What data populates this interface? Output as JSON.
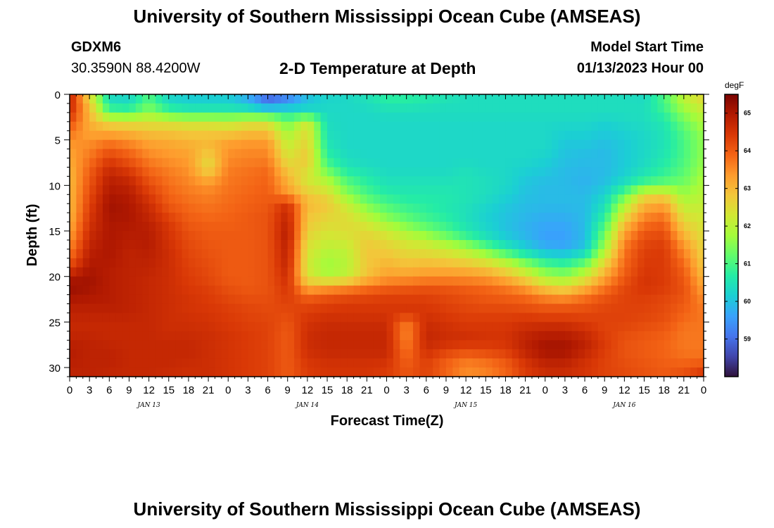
{
  "header": {
    "title": "University of Southern Mississippi Ocean Cube (AMSEAS)",
    "station": "GDXM6",
    "coordinates": "30.3590N  88.4200W",
    "subtitle": "2-D Temperature at Depth",
    "model_start_label": "Model Start Time",
    "model_start_value": "01/13/2023 Hour 00",
    "footer_title": "University of Southern Mississippi Ocean Cube (AMSEAS)"
  },
  "chart_data": {
    "type": "heatmap",
    "title": "2-D Temperature at Depth",
    "xlabel": "Forecast Time(Z)",
    "ylabel": "Depth (ft)",
    "x_hours_range": [
      0,
      96
    ],
    "x_tick_labels": [
      "0",
      "3",
      "6",
      "9",
      "12",
      "15",
      "18",
      "21",
      "0",
      "3",
      "6",
      "9",
      "12",
      "15",
      "18",
      "21",
      "0",
      "3",
      "6",
      "9",
      "12",
      "15",
      "18",
      "21",
      "0",
      "3",
      "6",
      "9",
      "12",
      "15",
      "18",
      "21",
      "0"
    ],
    "day_labels": [
      {
        "label": "JAN 13",
        "hour": 12
      },
      {
        "label": "JAN 14",
        "hour": 36
      },
      {
        "label": "JAN 15",
        "hour": 60
      },
      {
        "label": "JAN 16",
        "hour": 84
      }
    ],
    "y_range": [
      0,
      31
    ],
    "y_ticks": [
      0,
      5,
      10,
      15,
      20,
      25,
      30
    ],
    "depth_levels": [
      0,
      1,
      2,
      3,
      4,
      5,
      6,
      7,
      8,
      9,
      10,
      11,
      12,
      13,
      14,
      15,
      16,
      17,
      18,
      19,
      20,
      21,
      22,
      23,
      24,
      25,
      26,
      27,
      28,
      29,
      30,
      31
    ],
    "hours": [
      0,
      3,
      6,
      9,
      12,
      15,
      18,
      21,
      24,
      27,
      30,
      33,
      36,
      39,
      42,
      45,
      48,
      51,
      54,
      57,
      60,
      63,
      66,
      69,
      72,
      75,
      78,
      81,
      84,
      87,
      90,
      93,
      96
    ],
    "temperature_degF": [
      [
        64.8,
        62.4,
        60.3,
        60.2,
        61.0,
        60.2,
        60.1,
        60.1,
        60.1,
        59.7,
        58.8,
        59.2,
        59.9,
        60.2,
        60.3,
        60.5,
        60.8,
        60.8,
        60.7,
        60.6,
        60.4,
        60.4,
        60.4,
        60.4,
        60.4,
        60.4,
        60.4,
        60.4,
        60.4,
        60.3,
        61.0,
        62.1,
        62.6
      ],
      [
        64.8,
        62.8,
        60.5,
        60.4,
        61.2,
        60.4,
        60.2,
        60.2,
        60.2,
        59.9,
        59.2,
        59.5,
        60.1,
        60.3,
        60.3,
        60.4,
        60.6,
        60.6,
        60.5,
        60.4,
        60.4,
        60.4,
        60.4,
        60.4,
        60.4,
        60.4,
        60.4,
        60.4,
        60.4,
        60.4,
        61.0,
        61.9,
        62.4
      ],
      [
        64.6,
        63.0,
        61.1,
        61.0,
        61.6,
        61.0,
        60.8,
        60.8,
        60.8,
        60.8,
        60.6,
        60.6,
        60.4,
        60.3,
        60.3,
        60.3,
        60.4,
        60.4,
        60.4,
        60.4,
        60.4,
        60.4,
        60.4,
        60.4,
        60.4,
        60.4,
        60.4,
        60.4,
        60.4,
        60.4,
        60.8,
        61.6,
        62.1
      ],
      [
        64.2,
        63.1,
        62.5,
        62.4,
        62.4,
        62.3,
        62.2,
        62.2,
        62.1,
        62.3,
        62.3,
        61.2,
        62.3,
        60.4,
        60.3,
        60.3,
        60.3,
        60.3,
        60.3,
        60.3,
        60.3,
        60.3,
        60.3,
        60.3,
        60.3,
        60.3,
        60.3,
        60.2,
        60.3,
        60.4,
        60.6,
        61.3,
        61.9
      ],
      [
        63.8,
        63.2,
        63.1,
        63.0,
        62.8,
        62.8,
        62.7,
        62.7,
        62.6,
        62.8,
        62.8,
        61.7,
        62.5,
        60.4,
        60.3,
        60.3,
        60.3,
        60.3,
        60.3,
        60.3,
        60.3,
        60.3,
        60.3,
        60.3,
        60.3,
        60.2,
        60.2,
        60.1,
        60.2,
        60.3,
        60.5,
        61.1,
        61.7
      ],
      [
        63.5,
        63.4,
        63.6,
        63.4,
        63.2,
        63.1,
        63.0,
        63.0,
        63.2,
        63.3,
        63.3,
        62.0,
        62.6,
        60.5,
        60.3,
        60.3,
        60.3,
        60.3,
        60.3,
        60.3,
        60.3,
        60.3,
        60.3,
        60.3,
        60.3,
        60.1,
        60.1,
        60.0,
        60.1,
        60.3,
        60.5,
        61.0,
        61.6
      ],
      [
        63.3,
        63.6,
        64.0,
        63.8,
        63.4,
        63.3,
        63.2,
        62.9,
        63.4,
        63.5,
        63.5,
        62.2,
        62.7,
        60.6,
        60.3,
        60.3,
        60.3,
        60.3,
        60.3,
        60.3,
        60.3,
        60.3,
        60.3,
        60.3,
        60.3,
        60.0,
        60.0,
        59.9,
        60.1,
        60.3,
        60.5,
        61.0,
        61.6
      ],
      [
        63.2,
        63.7,
        64.3,
        64.0,
        63.6,
        63.4,
        63.3,
        62.6,
        63.5,
        63.6,
        63.6,
        62.4,
        62.8,
        60.8,
        60.4,
        60.3,
        60.3,
        60.3,
        60.3,
        60.3,
        60.3,
        60.3,
        60.3,
        60.3,
        60.2,
        60.0,
        59.9,
        59.9,
        60.1,
        60.3,
        60.6,
        61.0,
        61.6
      ],
      [
        63.1,
        63.9,
        64.6,
        64.3,
        63.8,
        63.6,
        63.4,
        62.5,
        63.6,
        63.7,
        63.8,
        62.7,
        62.6,
        61.1,
        60.5,
        60.4,
        60.3,
        60.3,
        60.3,
        60.3,
        60.4,
        60.3,
        60.3,
        60.2,
        60.1,
        59.9,
        59.9,
        59.9,
        60.1,
        60.4,
        60.7,
        61.1,
        61.7
      ],
      [
        63.0,
        64.0,
        64.8,
        64.6,
        64.0,
        63.7,
        63.5,
        63.0,
        63.7,
        63.8,
        63.9,
        63.0,
        62.3,
        61.7,
        60.9,
        60.6,
        60.4,
        60.4,
        60.4,
        60.4,
        60.5,
        60.4,
        60.3,
        60.1,
        60.0,
        59.9,
        59.8,
        59.9,
        60.2,
        60.6,
        60.9,
        61.2,
        61.8
      ],
      [
        63.0,
        64.1,
        64.9,
        64.8,
        64.2,
        63.8,
        63.6,
        63.4,
        63.7,
        63.8,
        63.9,
        63.2,
        62.4,
        62.1,
        61.2,
        60.8,
        60.5,
        60.5,
        60.5,
        60.5,
        60.5,
        60.4,
        60.3,
        60.0,
        59.9,
        59.9,
        59.8,
        60.0,
        60.5,
        61.1,
        61.3,
        61.4,
        61.9
      ],
      [
        63.0,
        64.2,
        65.0,
        64.9,
        64.4,
        63.9,
        63.7,
        63.6,
        63.8,
        63.9,
        64.0,
        63.4,
        62.8,
        62.5,
        61.6,
        61.0,
        60.7,
        60.6,
        60.6,
        60.6,
        60.5,
        60.4,
        60.2,
        60.0,
        59.9,
        59.9,
        59.9,
        60.2,
        61.2,
        62.5,
        62.6,
        61.7,
        62.0
      ],
      [
        63.0,
        64.3,
        65.1,
        65.0,
        64.6,
        64.0,
        63.8,
        63.7,
        63.8,
        63.9,
        64.0,
        64.5,
        63.0,
        62.8,
        62.1,
        61.4,
        61.0,
        60.8,
        60.7,
        60.6,
        60.5,
        60.3,
        60.1,
        59.9,
        59.9,
        59.9,
        59.9,
        60.4,
        61.8,
        63.0,
        63.2,
        62.0,
        62.1
      ],
      [
        63.0,
        64.4,
        65.1,
        65.0,
        64.7,
        64.2,
        63.9,
        63.8,
        63.9,
        64.0,
        64.1,
        64.7,
        62.9,
        62.7,
        62.4,
        61.8,
        61.3,
        61.0,
        60.8,
        60.6,
        60.4,
        60.2,
        60.0,
        59.9,
        59.8,
        59.8,
        59.9,
        60.6,
        62.3,
        63.4,
        63.6,
        62.3,
        62.2
      ],
      [
        63.1,
        64.5,
        65.0,
        65.0,
        64.8,
        64.4,
        64.0,
        63.9,
        63.9,
        64.0,
        64.1,
        64.8,
        62.8,
        62.5,
        62.5,
        62.2,
        61.7,
        61.3,
        61.0,
        60.8,
        60.5,
        60.2,
        60.0,
        59.8,
        59.7,
        59.7,
        59.9,
        60.9,
        62.8,
        63.7,
        63.9,
        62.6,
        62.3
      ],
      [
        63.2,
        64.6,
        65.0,
        64.9,
        64.9,
        64.5,
        64.1,
        64.0,
        64.0,
        64.0,
        64.1,
        64.9,
        62.7,
        62.4,
        62.5,
        62.5,
        62.2,
        61.8,
        61.4,
        61.0,
        60.6,
        60.3,
        60.0,
        59.8,
        59.6,
        59.6,
        59.9,
        61.2,
        63.2,
        64.0,
        64.1,
        62.9,
        62.4
      ],
      [
        63.4,
        64.7,
        65.0,
        64.9,
        64.9,
        64.5,
        64.2,
        64.0,
        64.0,
        64.0,
        64.1,
        64.9,
        62.5,
        62.2,
        62.3,
        62.7,
        62.5,
        62.2,
        62.0,
        61.6,
        61.1,
        60.6,
        60.2,
        59.9,
        59.6,
        59.6,
        59.9,
        61.5,
        63.5,
        64.2,
        64.3,
        63.2,
        62.5
      ],
      [
        63.6,
        64.8,
        65.0,
        64.8,
        64.9,
        64.6,
        64.2,
        64.1,
        64.0,
        64.0,
        64.1,
        64.8,
        62.4,
        62.0,
        62.1,
        62.8,
        62.7,
        62.5,
        62.4,
        62.2,
        61.9,
        61.3,
        60.7,
        60.2,
        59.8,
        59.7,
        60.1,
        61.8,
        63.7,
        64.3,
        64.4,
        63.5,
        62.6
      ],
      [
        63.9,
        64.9,
        65.0,
        64.8,
        64.8,
        64.6,
        64.3,
        64.1,
        64.0,
        64.0,
        64.1,
        64.8,
        62.3,
        61.8,
        62.0,
        62.8,
        62.9,
        62.7,
        62.7,
        62.6,
        62.4,
        62.1,
        61.6,
        61.0,
        60.5,
        60.4,
        60.8,
        62.3,
        63.8,
        64.4,
        64.4,
        63.7,
        62.7
      ],
      [
        64.3,
        65.0,
        64.9,
        64.8,
        64.8,
        64.6,
        64.3,
        64.2,
        64.0,
        64.0,
        64.1,
        64.7,
        62.3,
        61.7,
        62.0,
        62.8,
        63.1,
        63.0,
        63.1,
        63.1,
        63.0,
        62.8,
        62.4,
        61.8,
        61.2,
        61.0,
        61.5,
        62.8,
        63.9,
        64.4,
        64.4,
        63.9,
        62.8
      ],
      [
        64.9,
        65.1,
        64.9,
        64.8,
        64.7,
        64.6,
        64.4,
        64.2,
        64.0,
        64.0,
        64.1,
        64.6,
        62.4,
        61.9,
        62.1,
        62.9,
        63.3,
        63.3,
        63.4,
        63.4,
        63.4,
        63.3,
        63.0,
        62.5,
        61.8,
        61.6,
        62.2,
        63.2,
        64.0,
        64.5,
        64.4,
        64.0,
        63.0
      ],
      [
        65.2,
        65.1,
        64.9,
        64.8,
        64.7,
        64.6,
        64.4,
        64.3,
        64.1,
        64.0,
        64.1,
        64.5,
        63.0,
        63.1,
        63.3,
        63.6,
        63.8,
        63.9,
        64.0,
        64.0,
        63.9,
        63.8,
        63.6,
        63.2,
        62.6,
        62.4,
        62.9,
        63.6,
        64.2,
        64.5,
        64.4,
        64.1,
        63.2
      ],
      [
        65.1,
        65.0,
        64.9,
        64.8,
        64.7,
        64.6,
        64.5,
        64.4,
        64.2,
        64.1,
        64.1,
        64.4,
        63.8,
        64.0,
        64.1,
        64.2,
        64.3,
        64.3,
        64.3,
        64.2,
        64.1,
        64.0,
        63.9,
        63.8,
        63.4,
        63.2,
        63.6,
        64.0,
        64.3,
        64.4,
        64.3,
        64.1,
        63.4
      ],
      [
        64.9,
        64.9,
        64.9,
        64.8,
        64.7,
        64.6,
        64.5,
        64.4,
        64.3,
        64.2,
        64.2,
        64.3,
        64.2,
        64.3,
        64.4,
        64.4,
        64.4,
        64.4,
        64.4,
        64.3,
        64.2,
        64.1,
        64.1,
        64.0,
        63.9,
        63.9,
        64.0,
        64.2,
        64.3,
        64.3,
        64.2,
        64.0,
        63.6
      ],
      [
        64.8,
        64.8,
        64.8,
        64.8,
        64.7,
        64.6,
        64.5,
        64.5,
        64.4,
        64.3,
        64.2,
        64.2,
        64.4,
        64.5,
        64.5,
        64.5,
        64.5,
        64.5,
        64.5,
        64.4,
        64.3,
        64.3,
        64.3,
        64.3,
        64.2,
        64.2,
        64.2,
        64.3,
        64.3,
        64.3,
        64.2,
        63.9,
        63.7
      ],
      [
        64.7,
        64.7,
        64.7,
        64.7,
        64.7,
        64.6,
        64.6,
        64.5,
        64.4,
        64.3,
        64.3,
        64.1,
        64.5,
        64.6,
        64.6,
        64.6,
        64.6,
        63.7,
        64.6,
        64.5,
        64.4,
        64.4,
        64.4,
        64.5,
        64.5,
        64.5,
        64.4,
        64.3,
        64.3,
        64.2,
        64.1,
        63.8,
        63.7
      ],
      [
        64.7,
        64.7,
        64.7,
        64.7,
        64.7,
        64.6,
        64.6,
        64.6,
        64.5,
        64.4,
        64.3,
        64.0,
        64.6,
        64.7,
        64.7,
        64.7,
        64.7,
        63.5,
        64.7,
        64.6,
        64.5,
        64.5,
        64.5,
        64.7,
        64.8,
        64.8,
        64.6,
        64.3,
        64.2,
        64.1,
        64.0,
        63.7,
        63.7
      ],
      [
        64.8,
        64.8,
        64.7,
        64.7,
        64.7,
        64.7,
        64.7,
        64.6,
        64.5,
        64.4,
        64.3,
        64.0,
        64.6,
        64.7,
        64.7,
        64.7,
        64.7,
        63.6,
        64.7,
        64.6,
        64.6,
        64.5,
        64.5,
        64.8,
        65.0,
        65.0,
        64.8,
        64.4,
        64.1,
        64.0,
        63.9,
        63.7,
        63.7
      ],
      [
        64.9,
        64.8,
        64.8,
        64.7,
        64.7,
        64.7,
        64.7,
        64.6,
        64.5,
        64.4,
        64.3,
        64.0,
        64.6,
        64.7,
        64.7,
        64.7,
        64.7,
        63.7,
        64.6,
        64.4,
        64.2,
        64.3,
        64.4,
        64.8,
        65.1,
        65.1,
        64.8,
        64.4,
        64.1,
        64.0,
        63.9,
        63.7,
        63.7
      ],
      [
        64.9,
        64.8,
        64.8,
        64.7,
        64.7,
        64.7,
        64.7,
        64.6,
        64.5,
        64.4,
        64.3,
        64.0,
        64.5,
        64.6,
        64.6,
        64.6,
        64.6,
        63.9,
        64.4,
        64.0,
        63.8,
        63.9,
        64.1,
        64.6,
        64.9,
        64.9,
        64.6,
        64.3,
        64.1,
        64.0,
        63.9,
        63.8,
        63.8
      ],
      [
        64.8,
        64.8,
        64.8,
        64.7,
        64.7,
        64.7,
        64.6,
        64.6,
        64.5,
        64.4,
        64.3,
        64.0,
        64.4,
        64.5,
        64.5,
        64.5,
        64.4,
        64.0,
        64.3,
        63.9,
        63.5,
        63.6,
        63.9,
        64.4,
        64.7,
        64.7,
        64.5,
        64.3,
        64.2,
        64.1,
        64.0,
        64.0,
        64.2
      ],
      [
        64.8,
        64.8,
        64.7,
        64.7,
        64.7,
        64.6,
        64.6,
        64.6,
        64.5,
        64.4,
        64.3,
        64.0,
        64.4,
        64.5,
        64.5,
        64.5,
        64.4,
        64.1,
        64.3,
        63.9,
        63.5,
        63.6,
        63.9,
        64.4,
        64.6,
        64.6,
        64.5,
        64.3,
        64.2,
        64.1,
        64.0,
        64.2,
        64.6
      ]
    ],
    "colorbar": {
      "unit": "degF",
      "range": [
        58.0,
        65.5
      ],
      "tick_values": [
        59,
        60,
        61,
        62,
        63,
        64,
        65
      ],
      "tick_labels": [
        "59",
        "60",
        "61",
        "62",
        "63",
        "64",
        "65"
      ],
      "colormap": [
        "#30123b",
        "#4145ab",
        "#4675ed",
        "#39a2fc",
        "#1bcfd4",
        "#24eca6",
        "#61fc6c",
        "#a4fc3b",
        "#d1e834",
        "#f3c63a",
        "#fe9b2d",
        "#f36315",
        "#d93806",
        "#b11901",
        "#7a0402"
      ]
    }
  }
}
